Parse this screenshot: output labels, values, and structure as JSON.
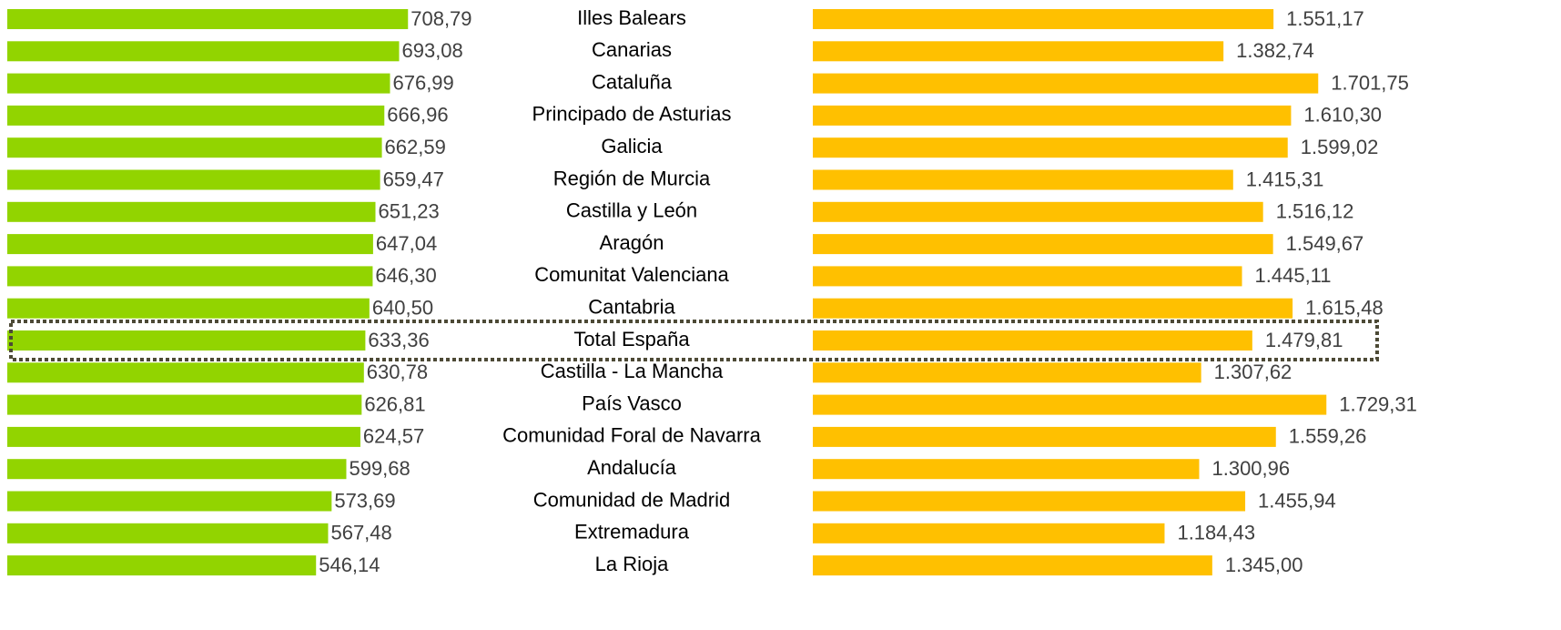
{
  "chart_data": {
    "type": "bar",
    "categories": [
      "Illes Balears",
      "Canarias",
      "Cataluña",
      "Principado de Asturias",
      "Galicia",
      "Región de Murcia",
      "Castilla y León",
      "Aragón",
      "Comunitat Valenciana",
      "Cantabria",
      "Total España",
      "Castilla - La Mancha",
      "País Vasco",
      "Comunidad Foral de Navarra",
      "Andalucía",
      "Comunidad de Madrid",
      "Extremadura",
      "La Rioja"
    ],
    "series": [
      {
        "color": "#92d400",
        "xlim": [
          0,
          710
        ],
        "values": [
          708.79,
          693.08,
          676.99,
          666.96,
          662.59,
          659.47,
          651.23,
          647.04,
          646.3,
          640.5,
          633.36,
          630.78,
          626.81,
          624.57,
          599.68,
          573.69,
          567.48,
          546.14
        ],
        "value_labels": [
          "708,79",
          "693,08",
          "676,99",
          "666,96",
          "662,59",
          "659,47",
          "651,23",
          "647,04",
          "646,30",
          "640,50",
          "633,36",
          "630,78",
          "626,81",
          "624,57",
          "599,68",
          "573,69",
          "567,48",
          "546,14"
        ]
      },
      {
        "color": "#ffc000",
        "xlim": [
          0,
          1750
        ],
        "values": [
          1551.17,
          1382.74,
          1701.75,
          1610.3,
          1599.02,
          1415.31,
          1516.12,
          1549.67,
          1445.11,
          1615.48,
          1479.81,
          1307.62,
          1729.31,
          1559.26,
          1300.96,
          1455.94,
          1184.43,
          1345.0
        ],
        "value_labels": [
          "1.551,17",
          "1.382,74",
          "1.701,75",
          "1.610,30",
          "1.599,02",
          "1.415,31",
          "1.516,12",
          "1.549,67",
          "1.445,11",
          "1.615,48",
          "1.479,81",
          "1.307,62",
          "1.729,31",
          "1.559,26",
          "1.300,96",
          "1.455,94",
          "1.184,43",
          "1.345,00"
        ]
      }
    ],
    "highlight_index": 10
  }
}
